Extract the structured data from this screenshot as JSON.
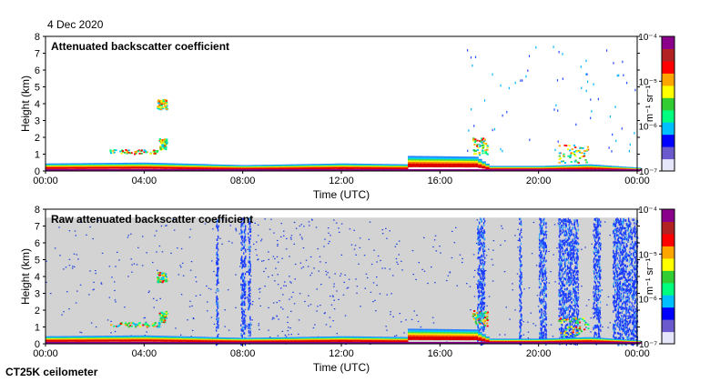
{
  "page": {
    "date_label": "4 Dec 2020",
    "instrument_label": "CT25K ceilometer"
  },
  "chart_data": [
    {
      "type": "heatmap",
      "title": "Attenuated backscatter coefficient",
      "xlabel": "Time (UTC)",
      "ylabel": "Height (km)",
      "x_ticks": [
        "00:00",
        "04:00",
        "08:00",
        "12:00",
        "16:00",
        "20:00",
        "00:00"
      ],
      "xlim_hours": [
        0,
        24
      ],
      "y_ticks": [
        0,
        1,
        2,
        3,
        4,
        5,
        6,
        7,
        8
      ],
      "ylim": [
        0,
        8
      ],
      "colorbar": {
        "label": "m⁻¹ sr⁻¹",
        "ticks": [
          "10⁻⁷",
          "10⁻⁶",
          "10⁻⁵",
          "10⁻⁴"
        ],
        "range": [
          1e-07,
          0.0001
        ],
        "scale": "log"
      },
      "background": "#ffffff",
      "features": {
        "boundary_layer_top_km": [
          [
            0,
            0.45
          ],
          [
            4,
            0.5
          ],
          [
            8,
            0.35
          ],
          [
            12,
            0.45
          ],
          [
            14.6,
            0.4
          ],
          [
            14.7,
            0.9
          ],
          [
            17.4,
            0.85
          ],
          [
            18,
            0.3
          ],
          [
            20,
            0.3
          ],
          [
            22,
            0.4
          ],
          [
            24,
            0.2
          ]
        ],
        "cloud_patches": [
          {
            "t_start": 2.6,
            "t_end": 4.6,
            "h_bottom": 1.05,
            "h_top": 1.3
          },
          {
            "t_start": 4.5,
            "t_end": 4.9,
            "h_bottom": 3.7,
            "h_top": 4.3
          },
          {
            "t_start": 4.6,
            "t_end": 4.9,
            "h_bottom": 1.3,
            "h_top": 1.95
          },
          {
            "t_start": 17.3,
            "t_end": 17.9,
            "h_bottom": 1.0,
            "h_top": 2.0
          },
          {
            "t_start": 20.8,
            "t_end": 22.0,
            "h_bottom": 0.5,
            "h_top": 1.6
          }
        ]
      }
    },
    {
      "type": "heatmap",
      "title": "Raw attenuated backscatter coefficient",
      "xlabel": "Time (UTC)",
      "ylabel": "Height (km)",
      "x_ticks": [
        "00:00",
        "04:00",
        "08:00",
        "12:00",
        "16:00",
        "20:00",
        "00:00"
      ],
      "xlim_hours": [
        0,
        24
      ],
      "y_ticks": [
        0,
        1,
        2,
        3,
        4,
        5,
        6,
        7,
        8
      ],
      "ylim": [
        0,
        8
      ],
      "colorbar": {
        "label": "m⁻¹ sr⁻¹",
        "ticks": [
          "10⁻⁷",
          "10⁻⁶",
          "10⁻⁵",
          "10⁻⁴"
        ],
        "range": [
          1e-07,
          0.0001
        ],
        "scale": "log"
      },
      "background": "#d3d3d3",
      "data_top_km": 7.5,
      "features": {
        "noise_columns_hours": [
          [
            6.9,
            7.0
          ],
          [
            7.9,
            8.1
          ],
          [
            8.2,
            8.3
          ],
          [
            17.5,
            17.8
          ],
          [
            19.2,
            19.3
          ],
          [
            20.0,
            20.3
          ],
          [
            20.8,
            21.6
          ],
          [
            22.2,
            22.5
          ],
          [
            23.0,
            24.0
          ]
        ]
      }
    }
  ],
  "colors": {
    "axis": "#000000",
    "noise_blue": "#1f3fe0",
    "colormap": [
      "#e6e6fa",
      "#6a5acd",
      "#0000ff",
      "#00bfff",
      "#00ff7f",
      "#32cd32",
      "#ffff00",
      "#ffa500",
      "#ff0000",
      "#b22222",
      "#8b008b"
    ]
  }
}
